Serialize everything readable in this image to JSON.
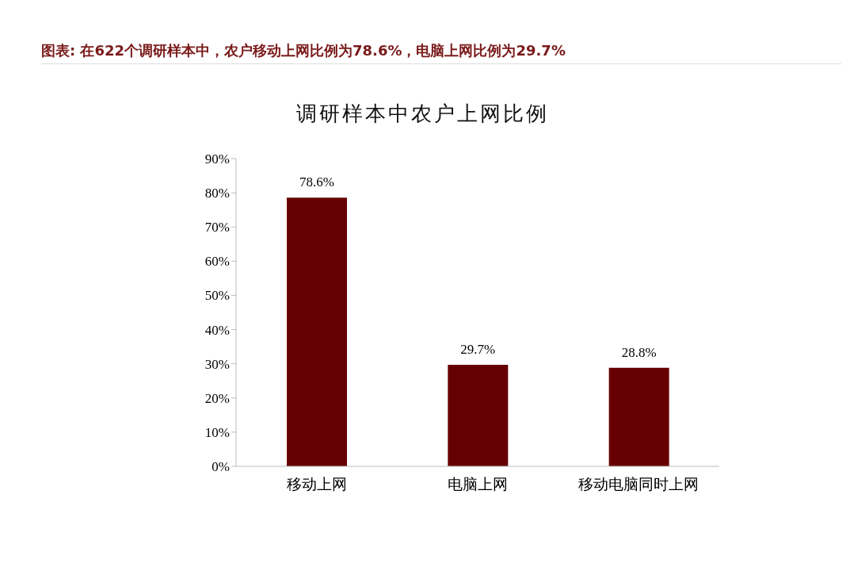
{
  "chart_data": {
    "type": "bar",
    "title": "图表: 在622个调研样本中，农户移动上网比例为78.6%，电脑上网比例为29.7%",
    "subtitle": "调研样本中农户上网比例",
    "categories": [
      "移动上网",
      "电脑上网",
      "移动电脑同时上网"
    ],
    "values": [
      78.6,
      29.7,
      28.8
    ],
    "color": "#660000",
    "value_labels": [
      "78.6%",
      "29.7%",
      "28.8%"
    ],
    "ylim": [
      0,
      90
    ],
    "yticks": [
      {
        "value": 0,
        "label": "0%"
      },
      {
        "value": 10,
        "label": "10%"
      },
      {
        "value": 20,
        "label": "20%"
      },
      {
        "value": 30,
        "label": "30%"
      },
      {
        "value": 40,
        "label": "40%"
      },
      {
        "value": 50,
        "label": "50%"
      },
      {
        "value": 60,
        "label": "60%"
      },
      {
        "value": 70,
        "label": "70%"
      },
      {
        "value": 80,
        "label": "80%"
      },
      {
        "value": 90,
        "label": "90%"
      }
    ],
    "grid": false,
    "legend": false
  }
}
